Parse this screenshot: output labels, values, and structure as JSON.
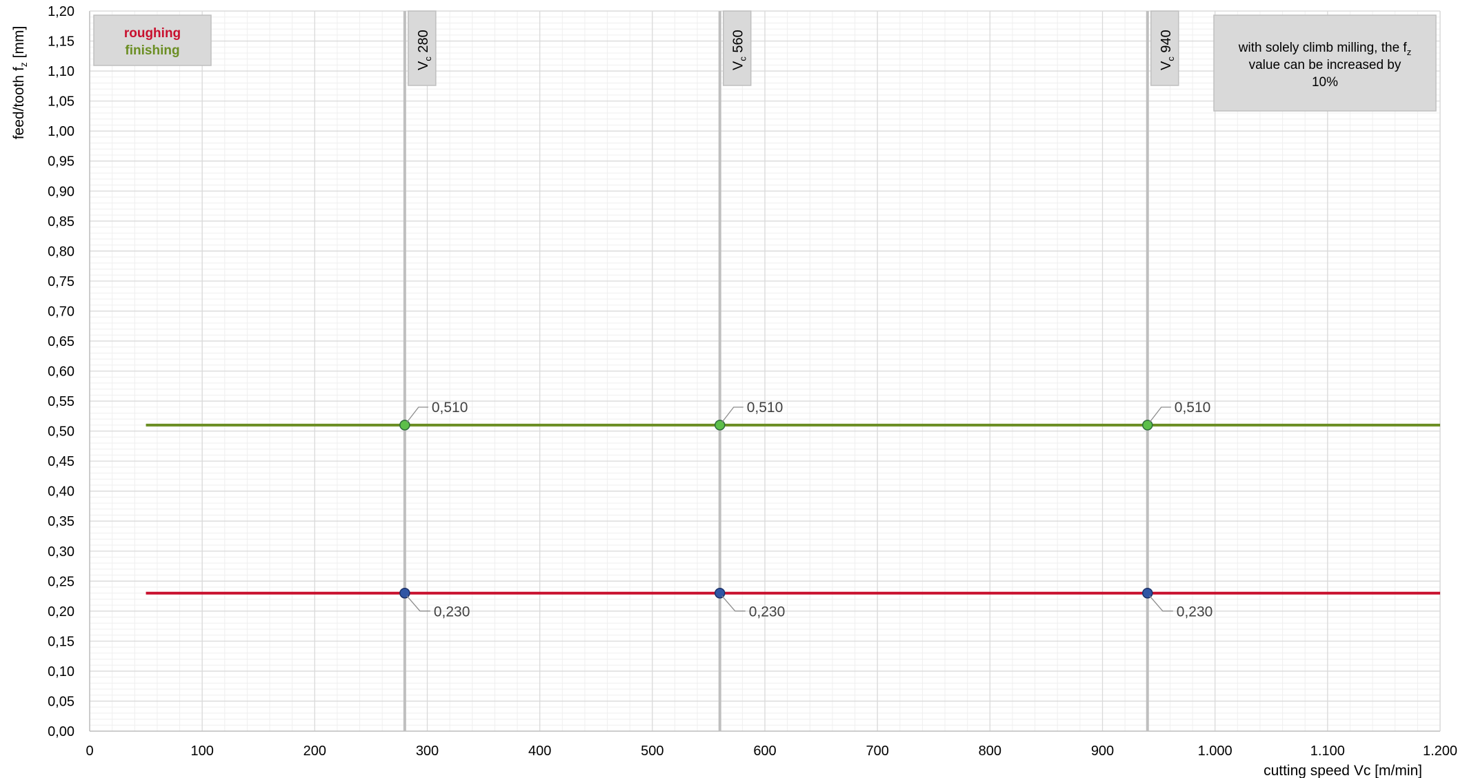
{
  "chart_data": {
    "type": "line",
    "x_axis": {
      "label": "cutting speed Vc [m/min]",
      "range": [
        0,
        1200
      ],
      "ticks": [
        0,
        100,
        200,
        300,
        400,
        500,
        600,
        700,
        800,
        900,
        1000,
        1100,
        1200
      ],
      "tick_labels": [
        "0",
        "100",
        "200",
        "300",
        "400",
        "500",
        "600",
        "700",
        "800",
        "900",
        "1.000",
        "1.100",
        "1.200"
      ]
    },
    "y_axis": {
      "label": "feed/tooth",
      "label_symbol": "f",
      "label_subscript": "z",
      "label_unit": "[mm]",
      "range": [
        0,
        1.2
      ],
      "ticks": [
        0,
        0.05,
        0.1,
        0.15,
        0.2,
        0.25,
        0.3,
        0.35,
        0.4,
        0.45,
        0.5,
        0.55,
        0.6,
        0.65,
        0.7,
        0.75,
        0.8,
        0.85,
        0.9,
        0.95,
        1.0,
        1.05,
        1.1,
        1.15,
        1.2
      ],
      "tick_labels": [
        "0,00",
        "0,05",
        "0,10",
        "0,15",
        "0,20",
        "0,25",
        "0,30",
        "0,35",
        "0,40",
        "0,45",
        "0,50",
        "0,55",
        "0,60",
        "0,65",
        "0,70",
        "0,75",
        "0,80",
        "0,85",
        "0,90",
        "0,95",
        "1,00",
        "1,05",
        "1,10",
        "1,15",
        "1,20"
      ]
    },
    "grid": true,
    "series": [
      {
        "name": "roughing",
        "color": "#c8102e",
        "x": [
          50,
          1200
        ],
        "y": [
          0.23,
          0.23
        ],
        "points": [
          {
            "x": 280,
            "y": 0.23,
            "label": "0,230"
          },
          {
            "x": 560,
            "y": 0.23,
            "label": "0,230"
          },
          {
            "x": 940,
            "y": 0.23,
            "label": "0,230"
          }
        ]
      },
      {
        "name": "finishing",
        "color": "#6b8e23",
        "x": [
          50,
          1200
        ],
        "y": [
          0.51,
          0.51
        ],
        "points": [
          {
            "x": 280,
            "y": 0.51,
            "label": "0,510"
          },
          {
            "x": 560,
            "y": 0.51,
            "label": "0,510"
          },
          {
            "x": 940,
            "y": 0.51,
            "label": "0,510"
          }
        ]
      }
    ],
    "reference_lines": [
      {
        "x": 280,
        "label_main": "V",
        "label_sub": "c",
        "label_value": "280"
      },
      {
        "x": 560,
        "label_main": "V",
        "label_sub": "c",
        "label_value": "560"
      },
      {
        "x": 940,
        "label_main": "V",
        "label_sub": "c",
        "label_value": "940"
      }
    ],
    "legend": {
      "placement": "top-left",
      "entries": [
        {
          "name": "roughing",
          "color": "#c8102e"
        },
        {
          "name": "finishing",
          "color": "#6b8e23"
        }
      ]
    },
    "note": {
      "placement": "top-right",
      "line1_pre": "with solely climb milling, the f",
      "line1_sub": "z",
      "line2": "value can be increased by",
      "line3": "10%"
    }
  }
}
